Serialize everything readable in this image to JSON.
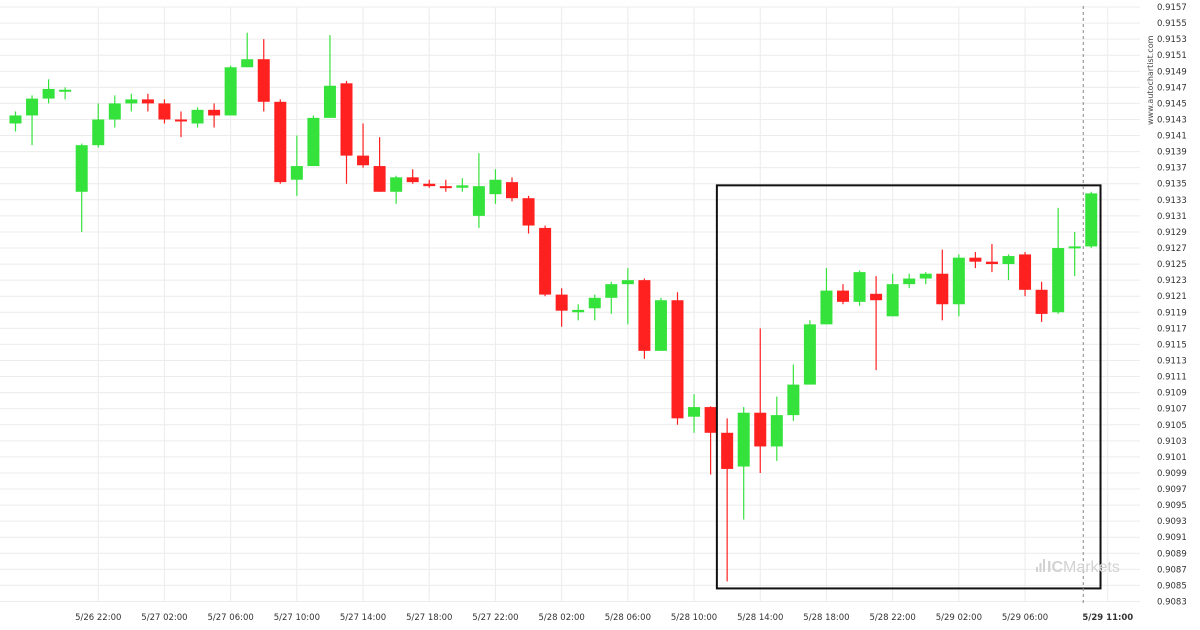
{
  "chart_data": {
    "type": "candlestick",
    "ylim": [
      0.9083,
      0.9157
    ],
    "ytick_start": 0.9085,
    "ytick_step": 0.0002,
    "ytick_labels": [
      "0.9157",
      "0.9155",
      "0.9153",
      "0.9151",
      "0.9149",
      "0.9147",
      "0.9145",
      "0.9143",
      "0.9141",
      "0.9139",
      "0.9137",
      "0.9135",
      "0.9133",
      "0.9131",
      "0.9129",
      "0.9127",
      "0.9125",
      "0.9123",
      "0.9121",
      "0.9119",
      "0.9117",
      "0.9115",
      "0.9113",
      "0.9111",
      "0.9109",
      "0.9107",
      "0.9105",
      "0.9103",
      "0.9101",
      "0.9099",
      "0.9097",
      "0.9095",
      "0.9093",
      "0.9091",
      "0.9089",
      "0.9087",
      "0.9085",
      "0.9083"
    ],
    "x_ticks": [
      {
        "label": "5/26 22:00",
        "index": 5
      },
      {
        "label": "5/27 02:00",
        "index": 9
      },
      {
        "label": "5/27 06:00",
        "index": 13
      },
      {
        "label": "5/27 10:00",
        "index": 17
      },
      {
        "label": "5/27 14:00",
        "index": 21
      },
      {
        "label": "5/27 18:00",
        "index": 25
      },
      {
        "label": "5/27 22:00",
        "index": 29
      },
      {
        "label": "5/28 02:00",
        "index": 33
      },
      {
        "label": "5/28 06:00",
        "index": 37
      },
      {
        "label": "5/28 10:00",
        "index": 41
      },
      {
        "label": "5/28 14:00",
        "index": 45
      },
      {
        "label": "5/28 18:00",
        "index": 49
      },
      {
        "label": "5/28 22:00",
        "index": 53
      },
      {
        "label": "5/29 02:00",
        "index": 57
      },
      {
        "label": "5/29 06:00",
        "index": 61
      },
      {
        "label": "5/29 11:00",
        "index": 66,
        "bold": true
      }
    ],
    "candles": [
      {
        "o": 0.91425,
        "h": 0.9144,
        "l": 0.91415,
        "c": 0.91435
      },
      {
        "o": 0.91435,
        "h": 0.9146,
        "l": 0.91398,
        "c": 0.91456
      },
      {
        "o": 0.91456,
        "h": 0.9148,
        "l": 0.9145,
        "c": 0.91468
      },
      {
        "o": 0.91465,
        "h": 0.9147,
        "l": 0.91455,
        "c": 0.91467
      },
      {
        "o": 0.9134,
        "h": 0.914,
        "l": 0.9129,
        "c": 0.91398
      },
      {
        "o": 0.91398,
        "h": 0.9145,
        "l": 0.91395,
        "c": 0.9143
      },
      {
        "o": 0.9143,
        "h": 0.9146,
        "l": 0.9142,
        "c": 0.9145
      },
      {
        "o": 0.9145,
        "h": 0.91462,
        "l": 0.9144,
        "c": 0.91455
      },
      {
        "o": 0.91455,
        "h": 0.91462,
        "l": 0.9144,
        "c": 0.9145
      },
      {
        "o": 0.9145,
        "h": 0.91455,
        "l": 0.91425,
        "c": 0.9143
      },
      {
        "o": 0.9143,
        "h": 0.9144,
        "l": 0.91408,
        "c": 0.91428
      },
      {
        "o": 0.91425,
        "h": 0.91445,
        "l": 0.9142,
        "c": 0.91442
      },
      {
        "o": 0.91442,
        "h": 0.9145,
        "l": 0.9142,
        "c": 0.91435
      },
      {
        "o": 0.91435,
        "h": 0.91497,
        "l": 0.91435,
        "c": 0.91495
      },
      {
        "o": 0.91495,
        "h": 0.91538,
        "l": 0.91495,
        "c": 0.91505
      },
      {
        "o": 0.91505,
        "h": 0.9153,
        "l": 0.9144,
        "c": 0.91452
      },
      {
        "o": 0.91452,
        "h": 0.91455,
        "l": 0.9135,
        "c": 0.91352
      },
      {
        "o": 0.91355,
        "h": 0.9141,
        "l": 0.91335,
        "c": 0.91372
      },
      {
        "o": 0.91372,
        "h": 0.91435,
        "l": 0.91372,
        "c": 0.91432
      },
      {
        "o": 0.91432,
        "h": 0.91535,
        "l": 0.91432,
        "c": 0.91472
      },
      {
        "o": 0.91475,
        "h": 0.91478,
        "l": 0.9135,
        "c": 0.91385
      },
      {
        "o": 0.91385,
        "h": 0.91425,
        "l": 0.9137,
        "c": 0.91373
      },
      {
        "o": 0.91372,
        "h": 0.91408,
        "l": 0.9134,
        "c": 0.9134
      },
      {
        "o": 0.9134,
        "h": 0.9136,
        "l": 0.91325,
        "c": 0.91358
      },
      {
        "o": 0.91358,
        "h": 0.91368,
        "l": 0.9135,
        "c": 0.91352
      },
      {
        "o": 0.9135,
        "h": 0.91355,
        "l": 0.91345,
        "c": 0.91347
      },
      {
        "o": 0.91347,
        "h": 0.91355,
        "l": 0.9134,
        "c": 0.91345
      },
      {
        "o": 0.91345,
        "h": 0.91357,
        "l": 0.9134,
        "c": 0.91348
      },
      {
        "o": 0.9131,
        "h": 0.91388,
        "l": 0.91295,
        "c": 0.91347
      },
      {
        "o": 0.91337,
        "h": 0.91368,
        "l": 0.91325,
        "c": 0.91355
      },
      {
        "o": 0.91352,
        "h": 0.91358,
        "l": 0.91328,
        "c": 0.91332
      },
      {
        "o": 0.91332,
        "h": 0.91335,
        "l": 0.91288,
        "c": 0.91298
      },
      {
        "o": 0.91295,
        "h": 0.91298,
        "l": 0.9121,
        "c": 0.91212
      },
      {
        "o": 0.91212,
        "h": 0.9122,
        "l": 0.91172,
        "c": 0.91192
      },
      {
        "o": 0.9119,
        "h": 0.912,
        "l": 0.9118,
        "c": 0.91193
      },
      {
        "o": 0.91195,
        "h": 0.91212,
        "l": 0.9118,
        "c": 0.91208
      },
      {
        "o": 0.91208,
        "h": 0.91228,
        "l": 0.91188,
        "c": 0.91225
      },
      {
        "o": 0.91225,
        "h": 0.91245,
        "l": 0.91175,
        "c": 0.9123
      },
      {
        "o": 0.9123,
        "h": 0.91232,
        "l": 0.91132,
        "c": 0.91142
      },
      {
        "o": 0.91142,
        "h": 0.91208,
        "l": 0.91142,
        "c": 0.91205
      },
      {
        "o": 0.91205,
        "h": 0.91215,
        "l": 0.9105,
        "c": 0.91058
      },
      {
        "o": 0.9106,
        "h": 0.91088,
        "l": 0.9104,
        "c": 0.91072
      },
      {
        "o": 0.91072,
        "h": 0.91073,
        "l": 0.90988,
        "c": 0.9104
      },
      {
        "o": 0.9104,
        "h": 0.91058,
        "l": 0.90855,
        "c": 0.90995
      },
      {
        "o": 0.90998,
        "h": 0.91072,
        "l": 0.90932,
        "c": 0.91065
      },
      {
        "o": 0.91065,
        "h": 0.9117,
        "l": 0.9099,
        "c": 0.91023
      },
      {
        "o": 0.91023,
        "h": 0.91085,
        "l": 0.91005,
        "c": 0.91062
      },
      {
        "o": 0.91062,
        "h": 0.91125,
        "l": 0.91055,
        "c": 0.911
      },
      {
        "o": 0.911,
        "h": 0.9118,
        "l": 0.911,
        "c": 0.91175
      },
      {
        "o": 0.91175,
        "h": 0.91245,
        "l": 0.91175,
        "c": 0.91217
      },
      {
        "o": 0.91217,
        "h": 0.91225,
        "l": 0.912,
        "c": 0.91203
      },
      {
        "o": 0.91203,
        "h": 0.91242,
        "l": 0.91198,
        "c": 0.9124
      },
      {
        "o": 0.91213,
        "h": 0.91235,
        "l": 0.91118,
        "c": 0.91205
      },
      {
        "o": 0.91185,
        "h": 0.91238,
        "l": 0.91185,
        "c": 0.91225
      },
      {
        "o": 0.91225,
        "h": 0.91238,
        "l": 0.9122,
        "c": 0.91232
      },
      {
        "o": 0.91232,
        "h": 0.9124,
        "l": 0.91225,
        "c": 0.91238
      },
      {
        "o": 0.91238,
        "h": 0.91268,
        "l": 0.9118,
        "c": 0.912
      },
      {
        "o": 0.912,
        "h": 0.91262,
        "l": 0.91185,
        "c": 0.91258
      },
      {
        "o": 0.91258,
        "h": 0.91265,
        "l": 0.91245,
        "c": 0.91253
      },
      {
        "o": 0.91253,
        "h": 0.91275,
        "l": 0.9124,
        "c": 0.9125
      },
      {
        "o": 0.9125,
        "h": 0.91262,
        "l": 0.9123,
        "c": 0.9126
      },
      {
        "o": 0.91262,
        "h": 0.91265,
        "l": 0.9121,
        "c": 0.91218
      },
      {
        "o": 0.91218,
        "h": 0.91228,
        "l": 0.91178,
        "c": 0.91188
      },
      {
        "o": 0.9119,
        "h": 0.9132,
        "l": 0.91188,
        "c": 0.9127
      },
      {
        "o": 0.9127,
        "h": 0.9129,
        "l": 0.91235,
        "c": 0.91272
      },
      {
        "o": 0.91272,
        "h": 0.9134,
        "l": 0.9127,
        "c": 0.91338
      }
    ],
    "pattern_box": {
      "start_index": 43,
      "end_index": 65,
      "low": 0.9085,
      "high": 0.91348
    },
    "up_color": "#35e23c",
    "down_color": "#ff2020",
    "grid": true
  },
  "watermark": {
    "text": "ICMarkets",
    "text_part1": "IC",
    "text_part2": "Markets",
    "icon": "bar-signal-icon"
  },
  "side_label": "www.autochartist.com",
  "colors": {
    "grid": "#ececec",
    "box": "#111111",
    "cursor": "#888888"
  }
}
